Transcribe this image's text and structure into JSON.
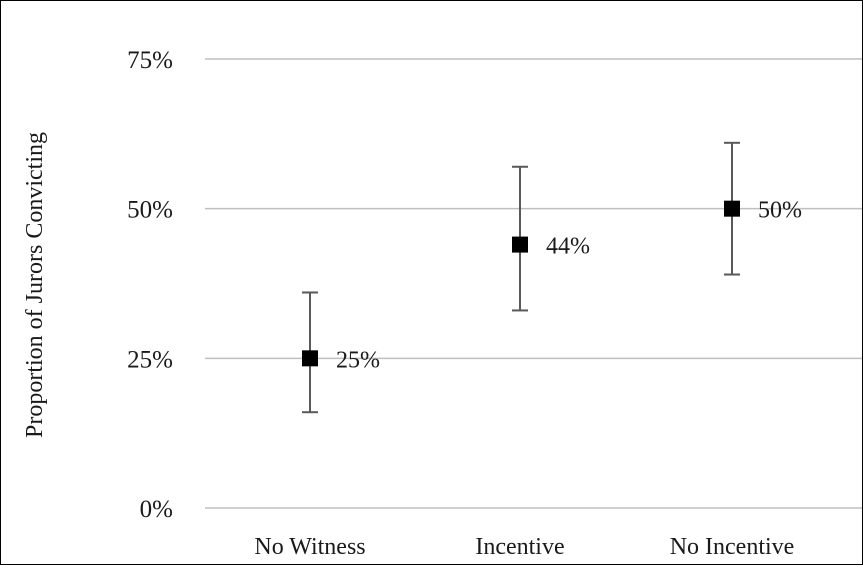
{
  "chart_data": {
    "type": "scatter",
    "title": "",
    "xlabel": "",
    "ylabel": "Proportion of Jurors Convicting",
    "ylim": [
      0,
      0.75
    ],
    "yticks": [
      {
        "value": 0,
        "label": "0%"
      },
      {
        "value": 0.25,
        "label": "25%"
      },
      {
        "value": 0.5,
        "label": "50%"
      },
      {
        "value": 0.75,
        "label": "75%"
      }
    ],
    "categories": [
      "No Witness",
      "Incentive",
      "No Incentive"
    ],
    "values": [
      0.25,
      0.44,
      0.5
    ],
    "error_low": [
      0.16,
      0.33,
      0.39
    ],
    "error_high": [
      0.36,
      0.57,
      0.61
    ],
    "data_labels": [
      "25%",
      "44%",
      "50%"
    ],
    "grid": true,
    "legend": "none",
    "colors": {
      "marker": "#000000",
      "error_bar": "#595959",
      "gridline": "#bfbfbf",
      "text": "#1a1a1a"
    }
  }
}
